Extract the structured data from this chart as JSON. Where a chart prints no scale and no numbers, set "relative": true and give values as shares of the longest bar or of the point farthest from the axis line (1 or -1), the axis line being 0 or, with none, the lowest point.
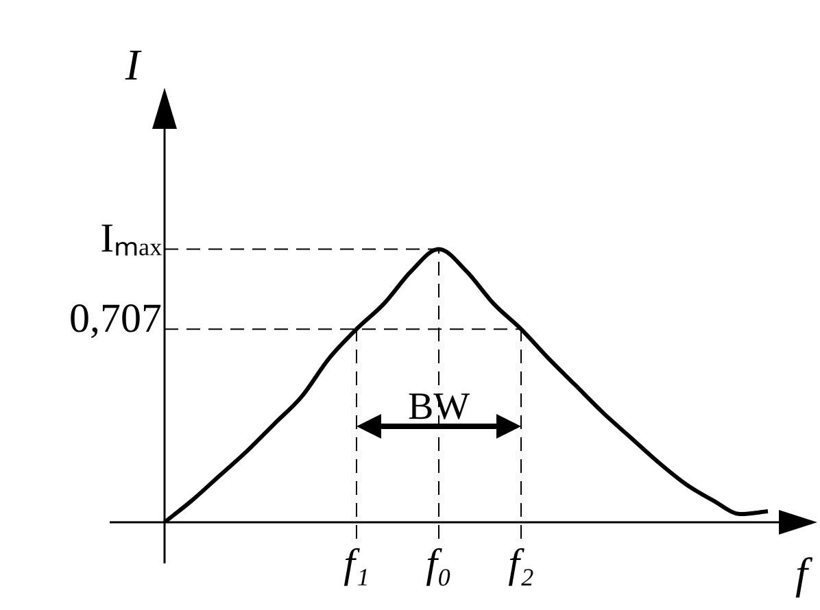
{
  "chart_data": {
    "type": "line",
    "relative": true,
    "xlabel": "f",
    "ylabel": "I",
    "categories": [
      null,
      null,
      null,
      null,
      null,
      null,
      null,
      "f₁",
      null,
      null,
      "f₀",
      null,
      null,
      "f₂",
      null,
      null,
      null,
      null,
      null,
      null,
      null,
      null,
      null
    ],
    "series": [
      {
        "color": "#000000",
        "values": [
          0,
          0.08,
          0.17,
          0.26,
          0.36,
          0.46,
          0.6,
          0.707,
          0.8,
          0.92,
          1,
          0.92,
          0.8,
          0.707,
          0.6,
          0.5,
          0.4,
          0.31,
          0.22,
          0.14,
          0.08,
          0.03,
          0.04
        ]
      }
    ],
    "marker": "none",
    "line_style": "solid",
    "grid": false,
    "ref_lines": [
      {
        "axis": "y",
        "value": 1,
        "label": "Iₘₐₓ",
        "line_style": "dashed"
      },
      {
        "axis": "y",
        "value": 0.707,
        "label": "0,707",
        "line_style": "dashed"
      },
      {
        "axis": "x",
        "value": "f₁",
        "line_style": "dashed"
      },
      {
        "axis": "x",
        "value": "f₀",
        "line_style": "dashed"
      },
      {
        "axis": "x",
        "value": "f₂",
        "line_style": "dashed"
      }
    ],
    "annotations": [
      "BW"
    ]
  }
}
